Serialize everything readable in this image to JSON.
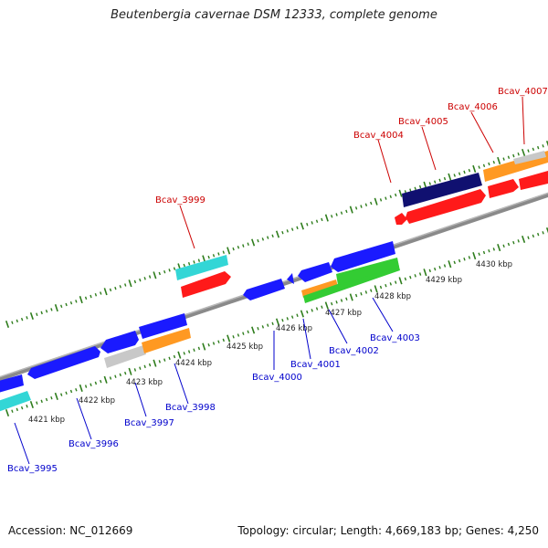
{
  "title": "Beutenbergia cavernae DSM 12333, complete genome",
  "accession": "Accession: NC_012669",
  "summary": "Topology: circular; Length: 4,669,183 bp; Genes: 4,250",
  "colors": {
    "background": "#ffffff",
    "backbone": "#8a8a8a",
    "tick": "#2e7d1c",
    "label_top": "#cc0000",
    "label_bottom": "#0000cc",
    "gene_blue": "#1a1aff",
    "gene_red": "#ff1a1a",
    "gene_cyan": "#33d6d6",
    "gene_green": "#33cc33",
    "gene_orange": "#ff9922",
    "gene_navy": "#101070",
    "gene_grey": "#c8c8c8"
  },
  "kbp_labels": [
    "4421 kbp",
    "4422 kbp",
    "4423 kbp",
    "4424 kbp",
    "4425 kbp",
    "4426 kbp",
    "4427 kbp",
    "4428 kbp",
    "4429 kbp",
    "4430 kbp"
  ],
  "gene_labels_top": [
    "Bcav_3999",
    "Bcav_4004",
    "Bcav_4005",
    "Bcav_4006",
    "Bcav_4007"
  ],
  "gene_labels_bottom": [
    "Bcav_3995",
    "Bcav_3996",
    "Bcav_3997",
    "Bcav_3998",
    "Bcav_4000",
    "Bcav_4001",
    "Bcav_4002",
    "Bcav_4003"
  ]
}
